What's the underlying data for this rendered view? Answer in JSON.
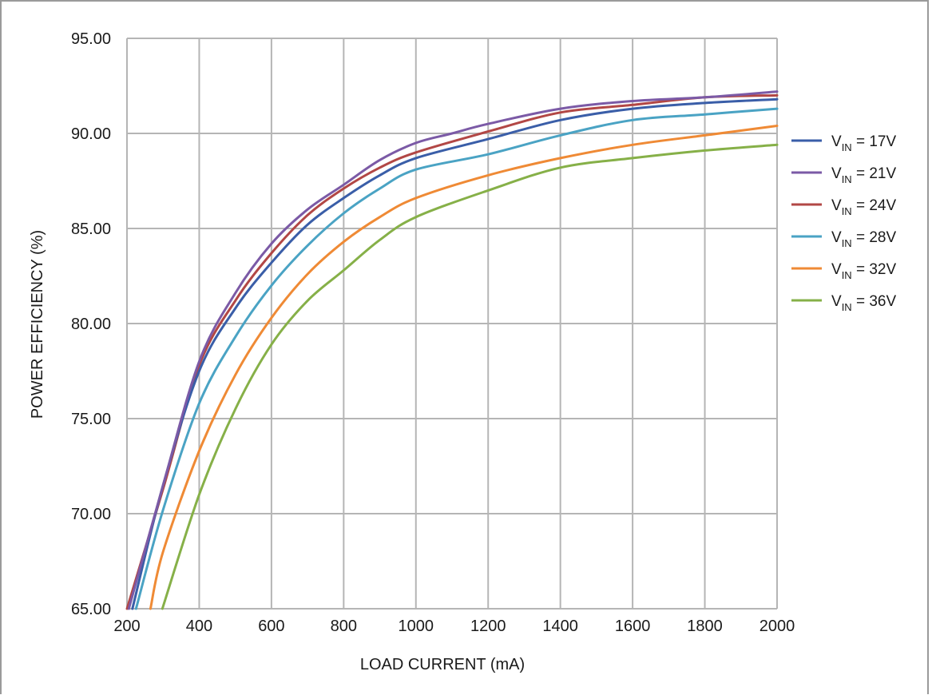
{
  "chart_data": {
    "type": "line",
    "xlabel": "LOAD CURRENT (mA)",
    "ylabel": "POWER EFFICIENCY (%)",
    "xlim": [
      200,
      2000
    ],
    "ylim": [
      65,
      95
    ],
    "x_ticks": [
      "200",
      "400",
      "600",
      "800",
      "1000",
      "1200",
      "1400",
      "1600",
      "1800",
      "2000"
    ],
    "y_ticks": [
      "95.00",
      "90.00",
      "85.00",
      "80.00",
      "75.00",
      "70.00",
      "65.00"
    ],
    "grid": true,
    "legend_position": "right",
    "series": [
      {
        "name": "VIN = 17V",
        "label_main": "V",
        "label_sub": "IN",
        "label_rest": " = 17V",
        "color": "#3a5ea8",
        "points": [
          [
            215,
            65
          ],
          [
            300,
            71.5
          ],
          [
            400,
            77.5
          ],
          [
            500,
            80.8
          ],
          [
            600,
            83.2
          ],
          [
            700,
            85.2
          ],
          [
            800,
            86.6
          ],
          [
            900,
            87.8
          ],
          [
            1000,
            88.7
          ],
          [
            1200,
            89.7
          ],
          [
            1400,
            90.7
          ],
          [
            1600,
            91.3
          ],
          [
            1800,
            91.6
          ],
          [
            2000,
            91.8
          ]
        ]
      },
      {
        "name": "VIN = 21V",
        "label_main": "V",
        "label_sub": "IN",
        "label_rest": " = 21V",
        "color": "#7b5aa6",
        "points": [
          [
            205,
            65
          ],
          [
            300,
            71.5
          ],
          [
            400,
            78.0
          ],
          [
            500,
            81.6
          ],
          [
            600,
            84.2
          ],
          [
            700,
            86.0
          ],
          [
            800,
            87.3
          ],
          [
            900,
            88.6
          ],
          [
            1000,
            89.5
          ],
          [
            1100,
            90.0
          ],
          [
            1200,
            90.5
          ],
          [
            1400,
            91.3
          ],
          [
            1600,
            91.7
          ],
          [
            1800,
            91.9
          ],
          [
            2000,
            92.2
          ]
        ]
      },
      {
        "name": "VIN = 24V",
        "label_main": "V",
        "label_sub": "IN",
        "label_rest": " = 24V",
        "color": "#b24745",
        "points": [
          [
            200,
            65
          ],
          [
            300,
            71.3
          ],
          [
            400,
            77.8
          ],
          [
            500,
            81.2
          ],
          [
            600,
            83.7
          ],
          [
            700,
            85.7
          ],
          [
            800,
            87.1
          ],
          [
            900,
            88.2
          ],
          [
            1000,
            89.0
          ],
          [
            1200,
            90.1
          ],
          [
            1400,
            91.1
          ],
          [
            1600,
            91.5
          ],
          [
            1800,
            91.9
          ],
          [
            2000,
            92.0
          ]
        ]
      },
      {
        "name": "VIN = 28V",
        "label_main": "V",
        "label_sub": "IN",
        "label_rest": " = 28V",
        "color": "#4aa3c4",
        "points": [
          [
            225,
            65
          ],
          [
            300,
            70.2
          ],
          [
            400,
            75.8
          ],
          [
            500,
            79.3
          ],
          [
            600,
            82.0
          ],
          [
            700,
            84.1
          ],
          [
            800,
            85.8
          ],
          [
            900,
            87.1
          ],
          [
            1000,
            88.1
          ],
          [
            1200,
            88.9
          ],
          [
            1400,
            89.9
          ],
          [
            1600,
            90.7
          ],
          [
            1800,
            91.0
          ],
          [
            2000,
            91.3
          ]
        ]
      },
      {
        "name": "VIN = 32V",
        "label_main": "V",
        "label_sub": "IN",
        "label_rest": " = 32V",
        "color": "#ef8a35",
        "points": [
          [
            265,
            65
          ],
          [
            300,
            68.0
          ],
          [
            400,
            73.3
          ],
          [
            500,
            77.3
          ],
          [
            600,
            80.3
          ],
          [
            700,
            82.6
          ],
          [
            800,
            84.3
          ],
          [
            900,
            85.6
          ],
          [
            1000,
            86.6
          ],
          [
            1200,
            87.8
          ],
          [
            1400,
            88.7
          ],
          [
            1600,
            89.4
          ],
          [
            1800,
            89.9
          ],
          [
            2000,
            90.4
          ]
        ]
      },
      {
        "name": "VIN = 36V",
        "label_main": "V",
        "label_sub": "IN",
        "label_rest": " = 36V",
        "color": "#86b048",
        "points": [
          [
            298,
            65
          ],
          [
            400,
            71.0
          ],
          [
            500,
            75.5
          ],
          [
            600,
            78.9
          ],
          [
            700,
            81.2
          ],
          [
            800,
            82.8
          ],
          [
            900,
            84.4
          ],
          [
            1000,
            85.6
          ],
          [
            1200,
            87.0
          ],
          [
            1400,
            88.2
          ],
          [
            1600,
            88.7
          ],
          [
            1800,
            89.1
          ],
          [
            2000,
            89.4
          ]
        ]
      }
    ]
  }
}
